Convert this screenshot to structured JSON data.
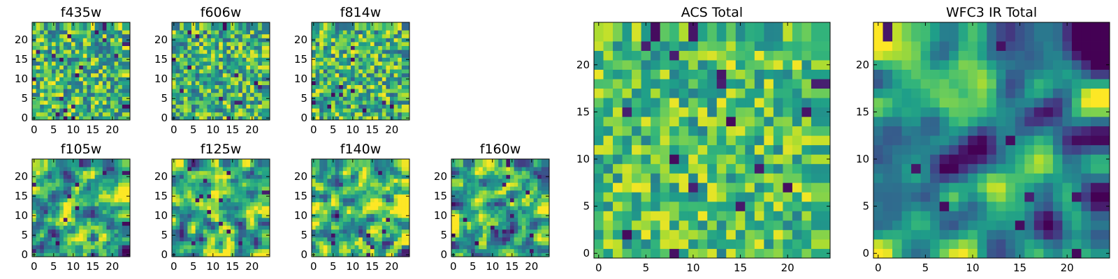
{
  "chart_data": [
    {
      "type": "heatmap",
      "title": "f435w",
      "grid_size": 24,
      "xlim": [
        0,
        24
      ],
      "ylim": [
        0,
        24
      ],
      "xticks": [
        0,
        5,
        10,
        15,
        20
      ],
      "yticks": [
        0,
        5,
        10,
        15,
        20
      ],
      "colormap": "viridis",
      "value_range": [
        0,
        1
      ],
      "grid": false,
      "seed": 11,
      "smoothing": 0,
      "bias": 0.64,
      "spread": 0.2
    },
    {
      "type": "heatmap",
      "title": "f606w",
      "grid_size": 24,
      "xlim": [
        0,
        24
      ],
      "ylim": [
        0,
        24
      ],
      "xticks": [
        0,
        5,
        10,
        15,
        20
      ],
      "yticks": [
        0,
        5,
        10,
        15,
        20
      ],
      "colormap": "viridis",
      "value_range": [
        0,
        1
      ],
      "grid": false,
      "seed": 23,
      "smoothing": 0,
      "bias": 0.64,
      "spread": 0.2
    },
    {
      "type": "heatmap",
      "title": "f814w",
      "grid_size": 24,
      "xlim": [
        0,
        24
      ],
      "ylim": [
        0,
        24
      ],
      "xticks": [
        0,
        5,
        10,
        15,
        20
      ],
      "yticks": [
        0,
        5,
        10,
        15,
        20
      ],
      "colormap": "viridis",
      "value_range": [
        0,
        1
      ],
      "grid": false,
      "seed": 37,
      "smoothing": 0,
      "bias": 0.66,
      "spread": 0.2
    },
    {
      "type": "heatmap",
      "title": "f105w",
      "grid_size": 24,
      "xlim": [
        0,
        24
      ],
      "ylim": [
        0,
        24
      ],
      "xticks": [
        0,
        5,
        10,
        15,
        20
      ],
      "yticks": [
        0,
        5,
        10,
        15,
        20
      ],
      "colormap": "viridis",
      "value_range": [
        0,
        1
      ],
      "grid": false,
      "seed": 41,
      "smoothing": 1,
      "bias": 0.6,
      "spread": 0.22
    },
    {
      "type": "heatmap",
      "title": "f125w",
      "grid_size": 24,
      "xlim": [
        0,
        24
      ],
      "ylim": [
        0,
        24
      ],
      "xticks": [
        0,
        5,
        10,
        15,
        20
      ],
      "yticks": [
        0,
        5,
        10,
        15,
        20
      ],
      "colormap": "viridis",
      "value_range": [
        0,
        1
      ],
      "grid": false,
      "seed": 53,
      "smoothing": 1,
      "bias": 0.64,
      "spread": 0.22
    },
    {
      "type": "heatmap",
      "title": "f140w",
      "grid_size": 24,
      "xlim": [
        0,
        24
      ],
      "ylim": [
        0,
        24
      ],
      "xticks": [
        0,
        5,
        10,
        15,
        20
      ],
      "yticks": [
        0,
        5,
        10,
        15,
        20
      ],
      "colormap": "viridis",
      "value_range": [
        0,
        1
      ],
      "grid": false,
      "seed": 67,
      "smoothing": 1,
      "bias": 0.66,
      "spread": 0.22
    },
    {
      "type": "heatmap",
      "title": "f160w",
      "grid_size": 24,
      "xlim": [
        0,
        24
      ],
      "ylim": [
        0,
        24
      ],
      "xticks": [
        0,
        5,
        10,
        15,
        20
      ],
      "yticks": [
        0,
        5,
        10,
        15,
        20
      ],
      "colormap": "viridis",
      "value_range": [
        0,
        1
      ],
      "grid": false,
      "seed": 79,
      "smoothing": 1,
      "bias": 0.6,
      "spread": 0.22
    },
    {
      "type": "heatmap",
      "title": "ACS Total",
      "grid_size": 24,
      "xlim": [
        0,
        24
      ],
      "ylim": [
        0,
        24
      ],
      "xticks": [
        0,
        5,
        10,
        15,
        20
      ],
      "yticks": [
        0,
        5,
        10,
        15,
        20
      ],
      "colormap": "viridis",
      "value_range": [
        0,
        1
      ],
      "grid": false,
      "seed": 97,
      "smoothing": 0,
      "bias": 0.7,
      "spread": 0.16
    },
    {
      "type": "heatmap",
      "title": "WFC3 IR Total",
      "grid_size": 24,
      "xlim": [
        0,
        24
      ],
      "ylim": [
        0,
        24
      ],
      "xticks": [
        0,
        5,
        10,
        15,
        20
      ],
      "yticks": [
        0,
        5,
        10,
        15,
        20
      ],
      "colormap": "viridis",
      "value_range": [
        0,
        1
      ],
      "grid": false,
      "seed": 113,
      "smoothing": 2,
      "bias": 0.48,
      "spread": 0.22
    }
  ]
}
